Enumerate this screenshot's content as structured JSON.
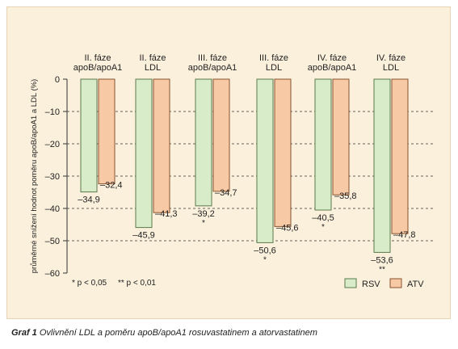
{
  "chart_data": {
    "type": "bar",
    "ylabel": "průměrné snížení hodnot poměru apoB/apoA1 a LDL (%)",
    "ylim": [
      -60,
      0
    ],
    "yticks": [
      0,
      -10,
      -20,
      -30,
      -40,
      -50,
      -60
    ],
    "ytick_labels": [
      "0",
      "–10",
      "–20",
      "–30",
      "–40",
      "–50",
      "–60"
    ],
    "grid": "dashed horizontal",
    "legend_position": "bottom-right",
    "categories": [
      {
        "line1": "II. fáze",
        "line2": "apoB/apoA1"
      },
      {
        "line1": "II. fáze",
        "line2": "LDL"
      },
      {
        "line1": "III. fáze",
        "line2": "apoB/apoA1"
      },
      {
        "line1": "III. fáze",
        "line2": "LDL"
      },
      {
        "line1": "IV. fáze",
        "line2": "apoB/apoA1"
      },
      {
        "line1": "IV. fáze",
        "line2": "LDL"
      }
    ],
    "series": [
      {
        "name": "RSV",
        "color": "#d9ecc9",
        "stroke": "#5a7a4a",
        "values": [
          -34.9,
          -45.9,
          -39.2,
          -50.6,
          -40.5,
          -53.6
        ],
        "labels": [
          "–34,9",
          "–45,9",
          "–39,2",
          "–50,6",
          "–40,5",
          "–53,6"
        ],
        "significance": [
          "",
          "",
          "*",
          "*",
          "*",
          "**"
        ]
      },
      {
        "name": "ATV",
        "color": "#f7c9a4",
        "stroke": "#8a5530",
        "values": [
          -32.4,
          -41.3,
          -34.7,
          -45.6,
          -35.8,
          -47.8
        ],
        "labels": [
          "–32,4",
          "–41,3",
          "–34,7",
          "–45,6",
          "–35,8",
          "–47,8"
        ]
      }
    ],
    "footnote": "* p < 0,05     ** p < 0,01"
  },
  "caption": {
    "label": "Graf 1",
    "text": " Ovlivnění LDL a poměru apoB/apoA1 rosuvastatinem a atorvastatinem"
  }
}
